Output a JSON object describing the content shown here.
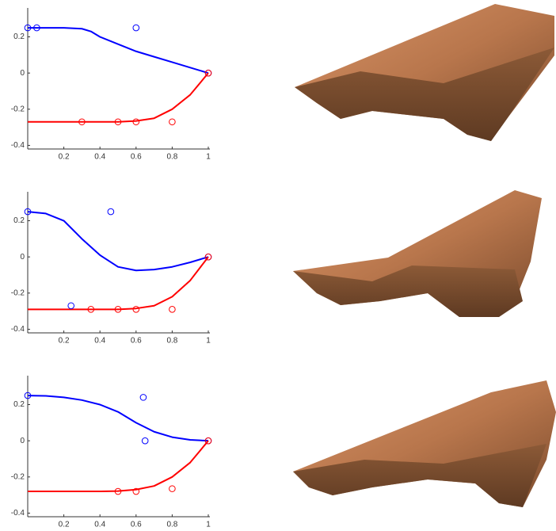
{
  "chart_data": [
    {
      "type": "line",
      "xlim": [
        0,
        1
      ],
      "ylim": [
        -0.42,
        0.36
      ],
      "xticks": [
        0.2,
        0.4,
        0.6,
        0.8,
        1
      ],
      "yticks": [
        -0.4,
        -0.2,
        0,
        0.2
      ],
      "series": [
        {
          "color": "#0000ff",
          "mode": "line",
          "x": [
            0,
            0.1,
            0.2,
            0.3,
            0.35,
            0.4,
            0.5,
            0.6,
            0.7,
            0.8,
            0.9,
            1
          ],
          "values": [
            0.25,
            0.25,
            0.25,
            0.245,
            0.23,
            0.2,
            0.16,
            0.12,
            0.09,
            0.06,
            0.03,
            0
          ]
        },
        {
          "color": "#ff0000",
          "mode": "line",
          "x": [
            0,
            0.1,
            0.2,
            0.3,
            0.4,
            0.5,
            0.6,
            0.7,
            0.8,
            0.9,
            1
          ],
          "values": [
            -0.27,
            -0.27,
            -0.27,
            -0.27,
            -0.27,
            -0.27,
            -0.265,
            -0.25,
            -0.2,
            -0.12,
            0
          ]
        },
        {
          "color": "#0000ff",
          "mode": "markers",
          "x": [
            0,
            0.05,
            0.6,
            1
          ],
          "values": [
            0.25,
            0.25,
            0.25,
            0
          ]
        },
        {
          "color": "#ff0000",
          "mode": "markers",
          "x": [
            0.3,
            0.5,
            0.6,
            0.8,
            1
          ],
          "values": [
            -0.27,
            -0.27,
            -0.27,
            -0.27,
            0
          ]
        }
      ]
    },
    {
      "type": "line",
      "xlim": [
        0,
        1
      ],
      "ylim": [
        -0.42,
        0.36
      ],
      "xticks": [
        0.2,
        0.4,
        0.6,
        0.8,
        1
      ],
      "yticks": [
        -0.4,
        -0.2,
        0,
        0.2
      ],
      "series": [
        {
          "color": "#0000ff",
          "mode": "line",
          "x": [
            0,
            0.1,
            0.2,
            0.3,
            0.4,
            0.5,
            0.6,
            0.7,
            0.8,
            0.9,
            1
          ],
          "values": [
            0.25,
            0.24,
            0.2,
            0.1,
            0.01,
            -0.055,
            -0.075,
            -0.07,
            -0.055,
            -0.03,
            0
          ]
        },
        {
          "color": "#ff0000",
          "mode": "line",
          "x": [
            0,
            0.1,
            0.2,
            0.3,
            0.4,
            0.5,
            0.6,
            0.7,
            0.8,
            0.9,
            1
          ],
          "values": [
            -0.29,
            -0.29,
            -0.29,
            -0.29,
            -0.29,
            -0.29,
            -0.285,
            -0.27,
            -0.22,
            -0.13,
            0
          ]
        },
        {
          "color": "#0000ff",
          "mode": "markers",
          "x": [
            0,
            0.46,
            0.24,
            1
          ],
          "values": [
            0.25,
            0.25,
            -0.27,
            0
          ]
        },
        {
          "color": "#ff0000",
          "mode": "markers",
          "x": [
            0.35,
            0.5,
            0.6,
            0.8,
            1
          ],
          "values": [
            -0.29,
            -0.29,
            -0.29,
            -0.29,
            0
          ]
        }
      ]
    },
    {
      "type": "line",
      "xlim": [
        0,
        1
      ],
      "ylim": [
        -0.42,
        0.36
      ],
      "xticks": [
        0.2,
        0.4,
        0.6,
        0.8,
        1
      ],
      "yticks": [
        -0.4,
        -0.2,
        0,
        0.2
      ],
      "series": [
        {
          "color": "#0000ff",
          "mode": "line",
          "x": [
            0,
            0.1,
            0.2,
            0.3,
            0.4,
            0.5,
            0.6,
            0.7,
            0.8,
            0.9,
            1
          ],
          "values": [
            0.25,
            0.248,
            0.24,
            0.225,
            0.2,
            0.16,
            0.1,
            0.05,
            0.02,
            0.005,
            0
          ]
        },
        {
          "color": "#ff0000",
          "mode": "line",
          "x": [
            0,
            0.1,
            0.2,
            0.3,
            0.4,
            0.5,
            0.6,
            0.7,
            0.8,
            0.9,
            1
          ],
          "values": [
            -0.28,
            -0.28,
            -0.28,
            -0.28,
            -0.28,
            -0.278,
            -0.27,
            -0.25,
            -0.2,
            -0.12,
            0
          ]
        },
        {
          "color": "#0000ff",
          "mode": "markers",
          "x": [
            0,
            0.64,
            0.65,
            1
          ],
          "values": [
            0.25,
            0.24,
            0,
            0
          ]
        },
        {
          "color": "#ff0000",
          "mode": "markers",
          "x": [
            0.5,
            0.6,
            0.8,
            1
          ],
          "values": [
            -0.28,
            -0.28,
            -0.265,
            0
          ]
        }
      ]
    }
  ]
}
